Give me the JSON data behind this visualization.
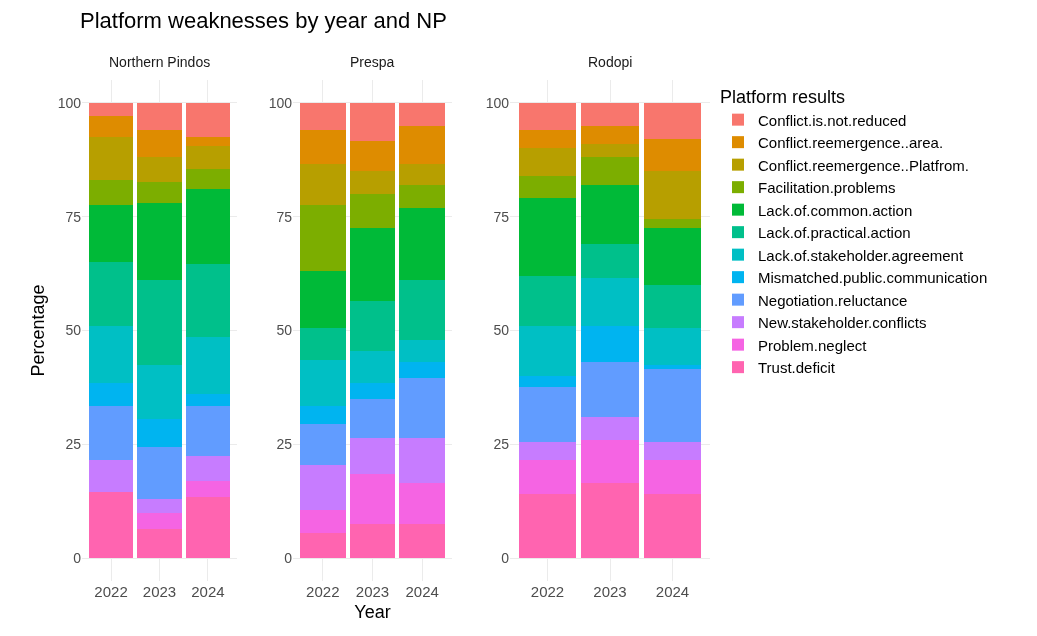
{
  "chart_data": [
    {
      "type": "bar",
      "title": "Platform weaknesses by year and NP",
      "subtitle": "Northern Pindos",
      "ylabel": "Percentage",
      "categories": [
        "2022",
        "2023",
        "2024"
      ],
      "stacked": true,
      "ylim": [
        -5,
        105
      ],
      "yticks": [
        0,
        25,
        50,
        75,
        100
      ],
      "grid": true,
      "series": [
        {
          "color": "#ff64b0",
          "values": [
            14.5,
            6.5,
            13.5
          ]
        },
        {
          "color": "#f564e3",
          "values": [
            0,
            3.5,
            3.5
          ]
        },
        {
          "color": "#c77cff",
          "values": [
            7,
            3,
            5.5
          ]
        },
        {
          "color": "#619cff",
          "values": [
            12,
            11.5,
            11
          ]
        },
        {
          "color": "#00b4f0",
          "values": [
            5,
            6,
            2.5
          ]
        },
        {
          "color": "#00bfc4",
          "values": [
            12.5,
            12,
            12.5
          ]
        },
        {
          "color": "#00c08b",
          "values": [
            14,
            18.5,
            16
          ]
        },
        {
          "color": "#00ba38",
          "values": [
            12.5,
            17,
            16.5
          ]
        },
        {
          "color": "#7cae00",
          "values": [
            5.5,
            4.5,
            4.5
          ]
        },
        {
          "color": "#b79f00",
          "values": [
            9.5,
            5.5,
            5
          ]
        },
        {
          "color": "#de8c00",
          "values": [
            4.5,
            6,
            2
          ]
        },
        {
          "color": "#f8766d",
          "values": [
            3,
            6,
            7.5
          ]
        }
      ]
    },
    {
      "type": "bar",
      "subtitle": "Prespa",
      "xlabel": "Year",
      "categories": [
        "2022",
        "2023",
        "2024"
      ],
      "stacked": true,
      "ylim": [
        -5,
        105
      ],
      "yticks": [
        0,
        25,
        50,
        75,
        100
      ],
      "grid": true,
      "series": [
        {
          "color": "#ff64b0",
          "values": [
            5.5,
            7.5,
            7.5
          ]
        },
        {
          "color": "#f564e3",
          "values": [
            5,
            11,
            9
          ]
        },
        {
          "color": "#c77cff",
          "values": [
            10,
            8,
            10
          ]
        },
        {
          "color": "#619cff",
          "values": [
            9,
            8.5,
            13
          ]
        },
        {
          "color": "#00b4f0",
          "values": [
            4,
            3.5,
            3.5
          ]
        },
        {
          "color": "#00bfc4",
          "values": [
            10,
            7,
            5
          ]
        },
        {
          "color": "#00c08b",
          "values": [
            7,
            11,
            13
          ]
        },
        {
          "color": "#00ba38",
          "values": [
            12.5,
            16,
            16
          ]
        },
        {
          "color": "#7cae00",
          "values": [
            14.5,
            7.5,
            5
          ]
        },
        {
          "color": "#b79f00",
          "values": [
            9,
            5,
            4.5
          ]
        },
        {
          "color": "#de8c00",
          "values": [
            7.5,
            6.5,
            8.5
          ]
        },
        {
          "color": "#f8766d",
          "values": [
            6,
            8.5,
            5
          ]
        }
      ]
    },
    {
      "type": "bar",
      "subtitle": "Rodopi",
      "legend_title": "Platform results",
      "legend": "right",
      "categories": [
        "2022",
        "2023",
        "2024"
      ],
      "stacked": true,
      "ylim": [
        -5,
        105
      ],
      "yticks": [
        0,
        25,
        50,
        75,
        100
      ],
      "grid": true,
      "series": [
        {
          "name": "Trust.deficit",
          "color": "#ff64b0",
          "values": [
            14,
            16.5,
            14
          ]
        },
        {
          "name": "Problem.neglect",
          "color": "#f564e3",
          "values": [
            7.5,
            9.5,
            7.5
          ]
        },
        {
          "name": "New.stakeholder.conflicts",
          "color": "#c77cff",
          "values": [
            4,
            5,
            4
          ]
        },
        {
          "name": "Negotiation.reluctance",
          "color": "#619cff",
          "values": [
            12,
            12,
            16
          ]
        },
        {
          "name": "Mismatched.public.communication",
          "color": "#00b4f0",
          "values": [
            2.5,
            8,
            1
          ]
        },
        {
          "name": "Lack.of.stakeholder.agreement",
          "color": "#00bfc4",
          "values": [
            11,
            10.5,
            8
          ]
        },
        {
          "name": "Lack.of.practical.action",
          "color": "#00c08b",
          "values": [
            11,
            7.5,
            9.5
          ]
        },
        {
          "name": "Lack.of.common.action",
          "color": "#00ba38",
          "values": [
            17,
            13,
            12.5
          ]
        },
        {
          "name": "Facilitation.problems",
          "color": "#7cae00",
          "values": [
            5,
            6,
            2
          ]
        },
        {
          "name": "Conflict.reemergence..Platfrom.",
          "color": "#b79f00",
          "values": [
            6,
            3,
            10.5
          ]
        },
        {
          "name": "Conflict.reemergence..area.",
          "color": "#de8c00",
          "values": [
            4,
            4,
            7
          ]
        },
        {
          "name": "Conflict.is.not.reduced",
          "color": "#f8766d",
          "values": [
            6,
            5,
            8
          ]
        }
      ]
    }
  ]
}
